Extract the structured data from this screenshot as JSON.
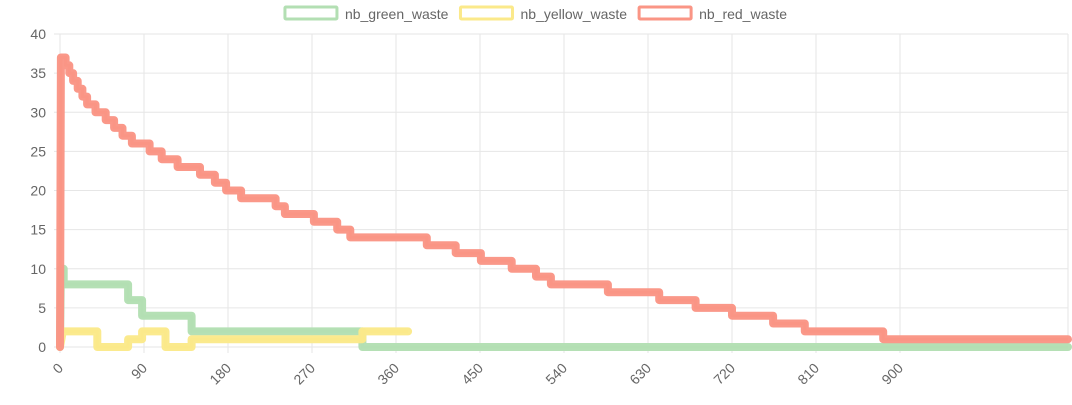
{
  "chart_data": {
    "type": "line",
    "xlim": [
      0,
      1080
    ],
    "ylim": [
      0,
      40
    ],
    "x_ticks": [
      0,
      90,
      180,
      270,
      360,
      450,
      540,
      630,
      720,
      810,
      900
    ],
    "y_ticks": [
      0,
      5,
      10,
      15,
      20,
      25,
      30,
      35,
      40
    ],
    "grid": true,
    "legend_position": "top-center",
    "series": [
      {
        "name": "nb_green_waste",
        "color": "#b3dfb3",
        "points": [
          [
            0,
            0
          ],
          [
            1,
            10
          ],
          [
            4,
            10
          ],
          [
            4,
            8
          ],
          [
            73,
            8
          ],
          [
            73,
            6
          ],
          [
            88,
            6
          ],
          [
            88,
            4
          ],
          [
            141,
            4
          ],
          [
            141,
            2
          ],
          [
            324,
            2
          ],
          [
            324,
            0
          ],
          [
            1080,
            0
          ]
        ]
      },
      {
        "name": "nb_yellow_waste",
        "color": "#fbe98a",
        "points": [
          [
            0,
            0
          ],
          [
            3,
            2
          ],
          [
            40,
            2
          ],
          [
            40,
            0
          ],
          [
            73,
            0
          ],
          [
            73,
            1
          ],
          [
            88,
            1
          ],
          [
            88,
            2
          ],
          [
            113,
            2
          ],
          [
            113,
            0
          ],
          [
            141,
            0
          ],
          [
            141,
            1
          ],
          [
            324,
            1
          ],
          [
            324,
            2
          ],
          [
            373,
            2
          ]
        ]
      },
      {
        "name": "nb_red_waste",
        "color": "#fa9585",
        "points": [
          [
            0,
            0
          ],
          [
            1,
            37
          ],
          [
            6,
            37
          ],
          [
            6,
            36
          ],
          [
            10,
            36
          ],
          [
            10,
            35
          ],
          [
            14,
            35
          ],
          [
            14,
            34
          ],
          [
            19,
            34
          ],
          [
            19,
            33
          ],
          [
            24,
            33
          ],
          [
            24,
            32
          ],
          [
            29,
            32
          ],
          [
            29,
            31
          ],
          [
            38,
            31
          ],
          [
            38,
            30
          ],
          [
            49,
            30
          ],
          [
            49,
            29
          ],
          [
            58,
            29
          ],
          [
            58,
            28
          ],
          [
            67,
            28
          ],
          [
            67,
            27
          ],
          [
            77,
            27
          ],
          [
            77,
            26
          ],
          [
            96,
            26
          ],
          [
            96,
            25
          ],
          [
            109,
            25
          ],
          [
            109,
            24
          ],
          [
            126,
            24
          ],
          [
            126,
            23
          ],
          [
            150,
            23
          ],
          [
            150,
            22
          ],
          [
            166,
            22
          ],
          [
            166,
            21
          ],
          [
            178,
            21
          ],
          [
            178,
            20
          ],
          [
            194,
            20
          ],
          [
            194,
            19
          ],
          [
            231,
            19
          ],
          [
            231,
            18
          ],
          [
            241,
            18
          ],
          [
            241,
            17
          ],
          [
            272,
            17
          ],
          [
            272,
            16
          ],
          [
            297,
            16
          ],
          [
            297,
            15
          ],
          [
            311,
            15
          ],
          [
            311,
            14
          ],
          [
            393,
            14
          ],
          [
            393,
            13
          ],
          [
            424,
            13
          ],
          [
            424,
            12
          ],
          [
            451,
            12
          ],
          [
            451,
            11
          ],
          [
            484,
            11
          ],
          [
            484,
            10
          ],
          [
            510,
            10
          ],
          [
            510,
            9
          ],
          [
            526,
            9
          ],
          [
            526,
            8
          ],
          [
            587,
            8
          ],
          [
            587,
            7
          ],
          [
            642,
            7
          ],
          [
            642,
            6
          ],
          [
            681,
            6
          ],
          [
            681,
            5
          ],
          [
            720,
            5
          ],
          [
            720,
            4
          ],
          [
            764,
            4
          ],
          [
            764,
            3
          ],
          [
            798,
            3
          ],
          [
            798,
            2
          ],
          [
            882,
            2
          ],
          [
            882,
            1
          ],
          [
            1080,
            1
          ]
        ]
      }
    ]
  }
}
